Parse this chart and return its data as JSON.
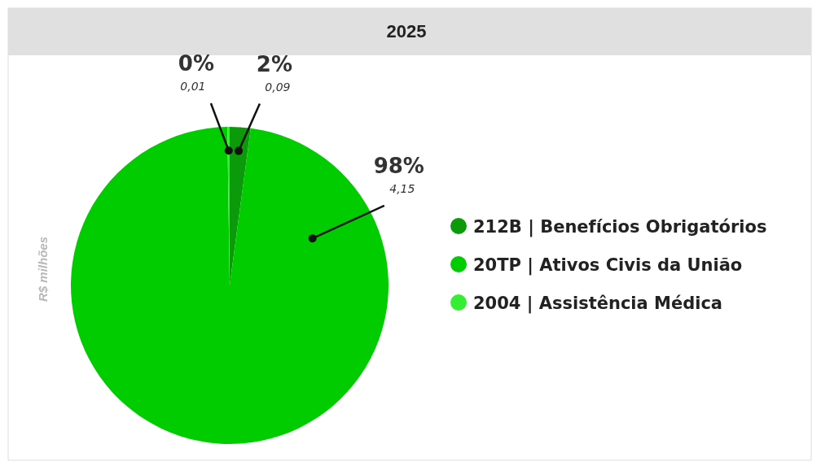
{
  "chart_data": {
    "type": "pie",
    "title": "2025",
    "ylabel": "R$ milhões",
    "categories": [
      "212B | Benefícios Obrigatórios",
      "20TP | Ativos Civis da União",
      "2004 | Assistência Médica"
    ],
    "values": [
      0.09,
      4.15,
      0.01
    ],
    "colors": [
      "#0a9a0a",
      "#00cc00",
      "#33ee33"
    ],
    "value_labels": [
      "0,09",
      "4,15",
      "0,01"
    ],
    "annotations": [
      "2%",
      "98%",
      "0%"
    ],
    "legend": "right"
  }
}
